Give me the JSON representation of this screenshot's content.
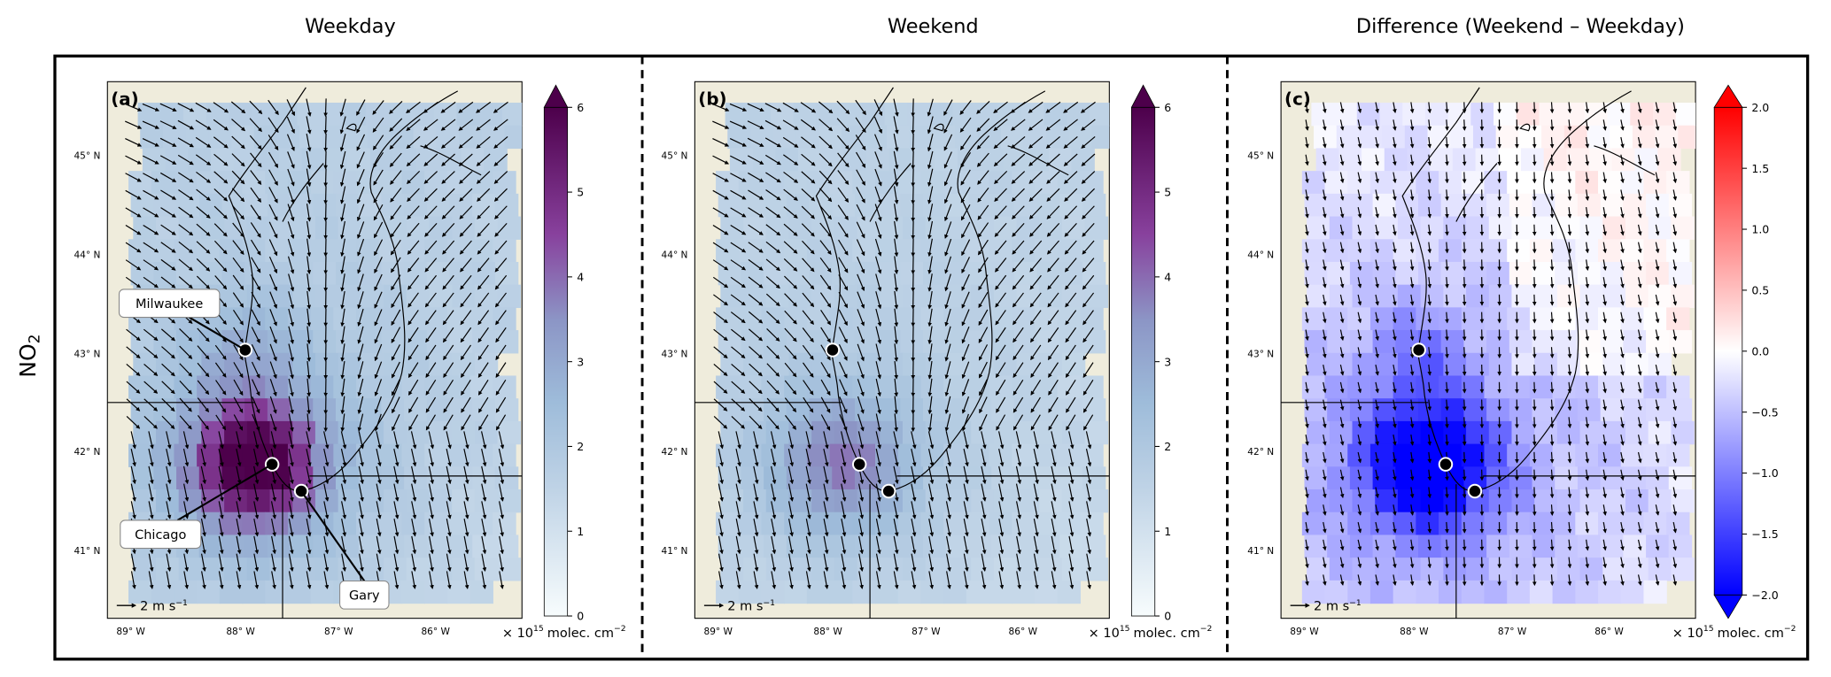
{
  "columns": [
    "Weekday",
    "Weekend",
    "Difference (Weekend – Weekday)"
  ],
  "row_label": {
    "text": "NO",
    "sub": "2"
  },
  "lon_ticks": [
    "89° W",
    "88° W",
    "87° W",
    "86° W"
  ],
  "lat_ticks": [
    "45° N",
    "44° N",
    "43° N",
    "42° N",
    "41° N"
  ],
  "unit": {
    "prefix": "× 10",
    "power": "15",
    "text": "molec. cm",
    "text_power": "−2"
  },
  "scale_label": {
    "text": "2 m s",
    "power": "−1"
  },
  "cities": [
    "Milwaukee",
    "Chicago",
    "Gary"
  ],
  "panels": [
    {
      "label": "(a)",
      "colormap": "BuPu",
      "lim": [
        0,
        6
      ],
      "ticks": [
        0,
        1,
        2,
        3,
        4,
        5,
        6
      ]
    },
    {
      "label": "(b)",
      "colormap": "BuPu",
      "lim": [
        0,
        6
      ],
      "ticks": [
        0,
        1,
        2,
        3,
        4,
        5,
        6
      ]
    },
    {
      "label": "(c)",
      "colormap": "bwr",
      "lim": [
        -2,
        2
      ],
      "ticks": [
        {
          "value": -2,
          "label": "−2.0"
        },
        {
          "value": -1.5,
          "label": "−1.5"
        },
        {
          "value": -1,
          "label": "−1.0"
        },
        {
          "value": -0.5,
          "label": "−0.5"
        },
        {
          "value": 0,
          "label": "0.0"
        },
        {
          "value": 0.5,
          "label": "0.5"
        },
        {
          "value": 1,
          "label": "1.0"
        },
        {
          "value": 1.5,
          "label": "1.5"
        },
        {
          "value": 2,
          "label": "2.0"
        }
      ]
    }
  ]
}
